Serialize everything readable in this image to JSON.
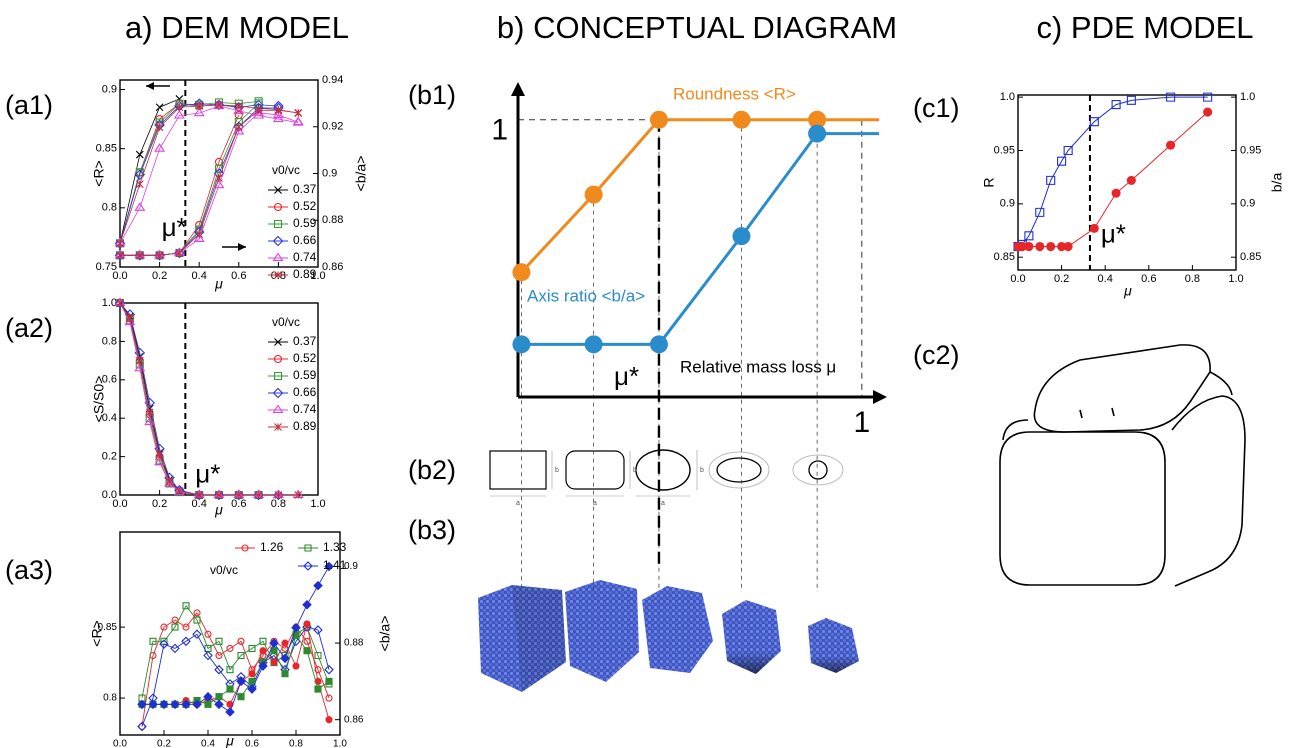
{
  "headings": [
    "a) DEM MODEL",
    "b) CONCEPTUAL DIAGRAM",
    "c) PDE MODEL"
  ],
  "panel_labels": [
    "(a1)",
    "(a2)",
    "(a3)",
    "(b1)",
    "(b2)",
    "(b3)",
    "(c1)",
    "(c2)"
  ],
  "shape_labels": [
    "a",
    "b"
  ],
  "chart_data": [
    {
      "type": "line",
      "x_label": "μ",
      "y_label": "<R>",
      "y2_label": "<b/a>",
      "legend_title": "v0/vc",
      "annotation": "μ*",
      "vline": 0.33,
      "xlim": [
        0,
        1
      ],
      "xticks": [
        {
          "value": 0,
          "label": "0.0"
        },
        0.2,
        0.4,
        0.6,
        0.8,
        {
          "value": 1,
          "label": "1.0"
        }
      ],
      "ylim": [
        0.75,
        0.908
      ],
      "yticks": [
        0.75,
        0.8,
        0.85,
        0.9
      ],
      "y2lim": [
        0.86,
        0.94
      ],
      "y2ticks": [
        0.86,
        0.88,
        0.9,
        0.92,
        0.94
      ],
      "x": [
        0,
        0.1,
        0.2,
        0.3,
        0.4,
        0.5,
        0.6,
        0.7,
        0.8,
        0.9
      ],
      "series": [
        {
          "name": "0.37",
          "color": "#000000",
          "marker": "x",
          "values": [
            0.77,
            0.845,
            0.885,
            0.892,
            null,
            null,
            null,
            null,
            null,
            null
          ]
        },
        {
          "name": "0.52",
          "color": "#e8262a",
          "marker": "circle",
          "values": [
            0.77,
            0.83,
            0.875,
            0.888,
            0.886,
            0.887,
            0.885,
            null,
            null,
            null
          ]
        },
        {
          "name": "0.59",
          "color": "#3a9a3a",
          "marker": "square",
          "values": [
            0.77,
            0.83,
            0.872,
            0.888,
            0.887,
            0.889,
            0.888,
            0.89,
            null,
            null
          ]
        },
        {
          "name": "0.66",
          "color": "#2a3ad8",
          "marker": "diamond",
          "values": [
            0.77,
            0.828,
            0.87,
            0.886,
            0.888,
            0.887,
            0.885,
            0.887,
            0.886,
            null
          ]
        },
        {
          "name": "0.74",
          "color": "#e040e0",
          "marker": "triangle",
          "values": [
            0.77,
            0.8,
            0.85,
            0.878,
            0.88,
            0.886,
            0.882,
            0.878,
            0.875,
            0.872
          ]
        },
        {
          "name": "0.89",
          "color": "#c0303a",
          "marker": "star",
          "values": [
            0.77,
            0.82,
            0.868,
            0.885,
            0.886,
            0.887,
            0.886,
            0.884,
            0.883,
            0.88
          ]
        },
        {
          "color": "#000000",
          "marker": "x",
          "axis": "y2",
          "values": [
            0.865,
            0.865,
            0.865,
            0.866,
            null,
            null,
            null,
            null,
            null,
            null
          ]
        },
        {
          "color": "#e8262a",
          "marker": "circle",
          "axis": "y2",
          "values": [
            0.865,
            0.865,
            0.865,
            0.866,
            0.878,
            0.905,
            0.925,
            null,
            null,
            null
          ]
        },
        {
          "color": "#3a9a3a",
          "marker": "square",
          "axis": "y2",
          "values": [
            0.865,
            0.865,
            0.865,
            0.866,
            0.876,
            0.902,
            0.922,
            0.93,
            null,
            null
          ]
        },
        {
          "color": "#2a3ad8",
          "marker": "diamond",
          "axis": "y2",
          "values": [
            0.865,
            0.865,
            0.865,
            0.866,
            0.875,
            0.9,
            0.92,
            0.928,
            0.928,
            null
          ]
        },
        {
          "color": "#e040e0",
          "marker": "triangle",
          "axis": "y2",
          "values": [
            0.865,
            0.865,
            0.865,
            0.866,
            0.872,
            0.895,
            0.918,
            0.926,
            0.925,
            0.922
          ]
        },
        {
          "color": "#c0303a",
          "marker": "star",
          "axis": "y2",
          "values": [
            0.865,
            0.865,
            0.865,
            0.866,
            0.874,
            0.898,
            0.92,
            0.927,
            0.927,
            0.926
          ]
        }
      ]
    },
    {
      "type": "line",
      "x_label": "μ",
      "y_label": "<S/S0>",
      "legend_title": "v0/vc",
      "annotation": "μ*",
      "vline": 0.33,
      "xlim": [
        0,
        1
      ],
      "xticks": [
        {
          "value": 0,
          "label": "0.0"
        },
        0.2,
        0.4,
        0.6,
        0.8,
        {
          "value": 1,
          "label": "1.0"
        }
      ],
      "ylim": [
        0,
        1
      ],
      "yticks": [
        {
          "value": 0,
          "label": "0.0"
        },
        0.2,
        0.4,
        0.6,
        0.8,
        {
          "value": 1,
          "label": "1.0"
        }
      ],
      "x": [
        0,
        0.05,
        0.1,
        0.15,
        0.2,
        0.25,
        0.3,
        0.4,
        0.5,
        0.6,
        0.7,
        0.8,
        0.9
      ],
      "series": [
        {
          "name": "0.37",
          "color": "#000000",
          "marker": "x",
          "values": [
            1.0,
            0.93,
            0.72,
            0.45,
            0.22,
            0.08,
            0.02,
            0,
            null,
            null,
            null,
            null,
            null
          ]
        },
        {
          "name": "0.52",
          "color": "#e8262a",
          "marker": "circle",
          "values": [
            1.0,
            0.92,
            0.7,
            0.42,
            0.2,
            0.07,
            0.02,
            0,
            0,
            0,
            null,
            null,
            null
          ]
        },
        {
          "name": "0.59",
          "color": "#3a9a3a",
          "marker": "square",
          "values": [
            1.0,
            0.91,
            0.68,
            0.4,
            0.18,
            0.06,
            0.015,
            0,
            0,
            0,
            0,
            null,
            null
          ]
        },
        {
          "name": "0.66",
          "color": "#2a3ad8",
          "marker": "diamond",
          "values": [
            1.0,
            0.94,
            0.74,
            0.48,
            0.24,
            0.09,
            0.025,
            0,
            0,
            0,
            0,
            0,
            null
          ]
        },
        {
          "name": "0.74",
          "color": "#e040e0",
          "marker": "triangle",
          "values": [
            1.0,
            0.9,
            0.66,
            0.38,
            0.17,
            0.06,
            0.015,
            0,
            0,
            0,
            0,
            0,
            0
          ]
        },
        {
          "name": "0.89",
          "color": "#c0303a",
          "marker": "star",
          "values": [
            1.0,
            0.92,
            0.7,
            0.43,
            0.21,
            0.07,
            0.02,
            0,
            0,
            0,
            0,
            0,
            0
          ]
        }
      ]
    },
    {
      "type": "line",
      "x_label": "μ",
      "y_label": "<R>",
      "y2_label": "<b/a>",
      "legend_title": "v0/vc",
      "xlim": [
        0,
        1
      ],
      "xticks": [
        {
          "value": 0,
          "label": "0.0"
        },
        0.2,
        0.4,
        0.6,
        0.8,
        {
          "value": 1,
          "label": "1.0"
        }
      ],
      "ylim": [
        0.774,
        0.917
      ],
      "yticks": [
        0.8,
        0.85
      ],
      "y2lim": [
        0.856,
        0.909
      ],
      "y2ticks": [
        0.86,
        0.88,
        0.9
      ],
      "x": [
        0.1,
        0.15,
        0.2,
        0.25,
        0.3,
        0.35,
        0.4,
        0.45,
        0.5,
        0.55,
        0.6,
        0.65,
        0.7,
        0.75,
        0.8,
        0.85,
        0.9,
        0.95
      ],
      "series": [
        {
          "name": "1.26",
          "color": "#e8262a",
          "marker": "circle",
          "values": [
            0.78,
            0.83,
            0.85,
            0.855,
            0.85,
            0.86,
            0.845,
            0.83,
            0.835,
            0.84,
            0.82,
            0.83,
            0.84,
            0.835,
            0.85,
            0.84,
            0.82,
            0.8
          ]
        },
        {
          "name": "1.33",
          "color": "#2e8a2e",
          "marker": "square",
          "values": [
            0.8,
            0.84,
            0.84,
            0.85,
            0.865,
            0.855,
            0.835,
            0.84,
            0.82,
            0.83,
            0.835,
            0.84,
            0.825,
            0.83,
            0.845,
            0.85,
            0.83,
            0.81
          ]
        },
        {
          "name": "1.41",
          "color": "#1f2fd0",
          "marker": "diamond",
          "values": [
            0.78,
            0.8,
            0.838,
            0.835,
            0.84,
            0.845,
            0.83,
            0.82,
            0.81,
            0.815,
            0.808,
            0.825,
            0.83,
            0.82,
            0.84,
            0.85,
            0.848,
            0.82
          ]
        },
        {
          "color": "#e8262a",
          "marker": "circle",
          "filled": true,
          "axis": "y2",
          "values": [
            0.864,
            0.864,
            0.864,
            0.864,
            0.865,
            0.864,
            0.865,
            0.866,
            0.864,
            0.87,
            0.872,
            0.878,
            0.875,
            0.88,
            0.874,
            0.885,
            0.87,
            0.86
          ]
        },
        {
          "color": "#2e8a2e",
          "marker": "square",
          "filled": true,
          "axis": "y2",
          "values": [
            0.864,
            0.864,
            0.864,
            0.864,
            0.864,
            0.865,
            0.864,
            0.866,
            0.868,
            0.866,
            0.87,
            0.875,
            0.878,
            0.872,
            0.882,
            0.878,
            0.868,
            0.87
          ]
        },
        {
          "color": "#1f2fd0",
          "marker": "diamond",
          "filled": true,
          "axis": "y2",
          "values": [
            0.864,
            0.864,
            0.864,
            0.864,
            0.864,
            0.864,
            0.866,
            0.864,
            0.862,
            0.87,
            0.868,
            0.874,
            0.88,
            0.876,
            0.884,
            0.89,
            0.895,
            0.9
          ]
        }
      ]
    },
    {
      "type": "schematic",
      "x_label": "Relative mass loss μ",
      "annotation": "μ*",
      "vline": 0.41,
      "xlim": [
        0,
        1.05
      ],
      "xticks": [
        1
      ],
      "ylim": [
        0,
        1.1
      ],
      "yticks": [
        1
      ],
      "x": [
        0.01,
        0.22,
        0.41,
        0.65,
        0.87
      ],
      "series": [
        {
          "name": "Roundness <R>",
          "color": "#f08a1c",
          "values": [
            0.45,
            0.73,
            1,
            1,
            1
          ]
        },
        {
          "name": "Axis ratio <b/a>",
          "color": "#2b8ccc",
          "values": [
            0.19,
            0.19,
            0.19,
            0.58,
            0.95
          ]
        }
      ]
    },
    {
      "type": "line",
      "x_label": "μ",
      "y_label": "R",
      "y2_label": "b/a",
      "annotation": "μ*",
      "vline": 0.33,
      "xlim": [
        0,
        1
      ],
      "xticks": [
        {
          "value": 0,
          "label": "0.0"
        },
        0.2,
        0.4,
        0.6,
        0.8,
        {
          "value": 1,
          "label": "1.0"
        }
      ],
      "ylim": [
        0.838,
        1.002
      ],
      "yticks": [
        0.85,
        0.9,
        0.95,
        {
          "value": 1,
          "label": "1.0"
        }
      ],
      "y2lim": [
        0.838,
        1.002
      ],
      "y2ticks": [
        0.85,
        0.9,
        0.95,
        {
          "value": 1,
          "label": "1.0"
        }
      ],
      "x": [
        0,
        0.02,
        0.05,
        0.1,
        0.15,
        0.2,
        0.23,
        0.35,
        0.45,
        0.52,
        0.7,
        0.87
      ],
      "series": [
        {
          "color": "#1f2fd0",
          "marker": "square",
          "values": [
            0.86,
            0.862,
            0.87,
            0.892,
            0.922,
            0.94,
            0.95,
            0.977,
            0.993,
            0.997,
            1.0,
            1.0
          ]
        },
        {
          "color": "#e8262a",
          "marker": "circle",
          "filled": true,
          "axis": "y2",
          "values": [
            0.86,
            0.86,
            0.86,
            0.86,
            0.86,
            0.86,
            0.86,
            0.877,
            0.91,
            0.922,
            0.955,
            0.986
          ]
        }
      ]
    }
  ]
}
